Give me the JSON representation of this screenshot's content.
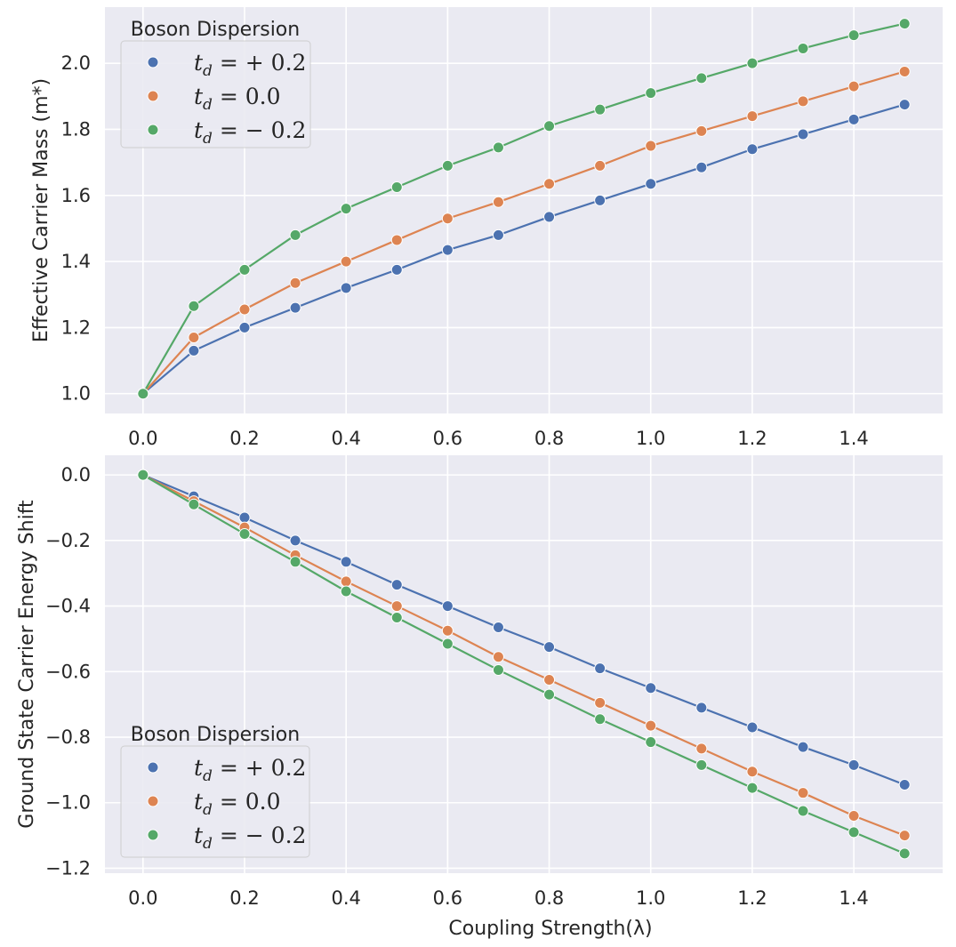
{
  "chart_data": [
    {
      "type": "line",
      "title": "",
      "xlabel": "",
      "ylabel": "Effective Carrier Mass (m*)",
      "xlim": [
        -0.075,
        1.575
      ],
      "ylim": [
        0.94,
        2.17
      ],
      "xticks": [
        "0.0",
        "0.2",
        "0.4",
        "0.6",
        "0.8",
        "1.0",
        "1.2",
        "1.4"
      ],
      "yticks": [
        "1.0",
        "1.2",
        "1.4",
        "1.6",
        "1.8",
        "2.0"
      ],
      "grid": true,
      "legend": {
        "title": "Boson Dispersion",
        "placement": "top-left"
      },
      "x": [
        0.0,
        0.1,
        0.2,
        0.3,
        0.4,
        0.5,
        0.6,
        0.7,
        0.8,
        0.9,
        1.0,
        1.1,
        1.2,
        1.3,
        1.4,
        1.5
      ],
      "series": [
        {
          "name": "t_d = +0.2",
          "label_main": "t",
          "label_sub": "d",
          "label_rest": " = + 0.2",
          "color": "#4C72B0",
          "values": [
            1.0,
            1.13,
            1.2,
            1.26,
            1.32,
            1.375,
            1.435,
            1.48,
            1.535,
            1.585,
            1.635,
            1.685,
            1.74,
            1.785,
            1.83,
            1.875
          ]
        },
        {
          "name": "t_d = 0.0",
          "label_main": "t",
          "label_sub": "d",
          "label_rest": " = 0.0",
          "color": "#DD8452",
          "values": [
            1.0,
            1.17,
            1.255,
            1.335,
            1.4,
            1.465,
            1.53,
            1.58,
            1.635,
            1.69,
            1.75,
            1.795,
            1.84,
            1.885,
            1.93,
            1.975
          ]
        },
        {
          "name": "t_d = -0.2",
          "label_main": "t",
          "label_sub": "d",
          "label_rest": " = − 0.2",
          "color": "#55A868",
          "values": [
            1.0,
            1.265,
            1.375,
            1.48,
            1.56,
            1.625,
            1.69,
            1.745,
            1.81,
            1.86,
            1.91,
            1.955,
            2.0,
            2.045,
            2.085,
            2.12
          ]
        }
      ]
    },
    {
      "type": "line",
      "title": "",
      "xlabel": "Coupling Strength(λ)",
      "ylabel": "Ground State Carrier Energy Shift",
      "xlim": [
        -0.075,
        1.575
      ],
      "ylim": [
        -1.215,
        0.06
      ],
      "xticks": [
        "0.0",
        "0.2",
        "0.4",
        "0.6",
        "0.8",
        "1.0",
        "1.2",
        "1.4"
      ],
      "yticks": [
        "0.0",
        "−0.2",
        "−0.4",
        "−0.6",
        "−0.8",
        "−1.0",
        "−1.2"
      ],
      "grid": true,
      "legend": {
        "title": "Boson Dispersion",
        "placement": "lower-left"
      },
      "x": [
        0.0,
        0.1,
        0.2,
        0.3,
        0.4,
        0.5,
        0.6,
        0.7,
        0.8,
        0.9,
        1.0,
        1.1,
        1.2,
        1.3,
        1.4,
        1.5
      ],
      "series": [
        {
          "name": "t_d = +0.2",
          "label_main": "t",
          "label_sub": "d",
          "label_rest": " = + 0.2",
          "color": "#4C72B0",
          "values": [
            0.0,
            -0.065,
            -0.13,
            -0.2,
            -0.265,
            -0.335,
            -0.4,
            -0.465,
            -0.525,
            -0.59,
            -0.65,
            -0.71,
            -0.77,
            -0.83,
            -0.885,
            -0.945
          ]
        },
        {
          "name": "t_d = 0.0",
          "label_main": "t",
          "label_sub": "d",
          "label_rest": " = 0.0",
          "color": "#DD8452",
          "values": [
            0.0,
            -0.08,
            -0.16,
            -0.245,
            -0.325,
            -0.4,
            -0.475,
            -0.555,
            -0.625,
            -0.695,
            -0.765,
            -0.835,
            -0.905,
            -0.97,
            -1.04,
            -1.1
          ]
        },
        {
          "name": "t_d = -0.2",
          "label_main": "t",
          "label_sub": "d",
          "label_rest": " = − 0.2",
          "color": "#55A868",
          "values": [
            0.0,
            -0.09,
            -0.18,
            -0.265,
            -0.355,
            -0.435,
            -0.515,
            -0.595,
            -0.67,
            -0.745,
            -0.815,
            -0.885,
            -0.955,
            -1.025,
            -1.09,
            -1.155
          ]
        }
      ]
    }
  ]
}
